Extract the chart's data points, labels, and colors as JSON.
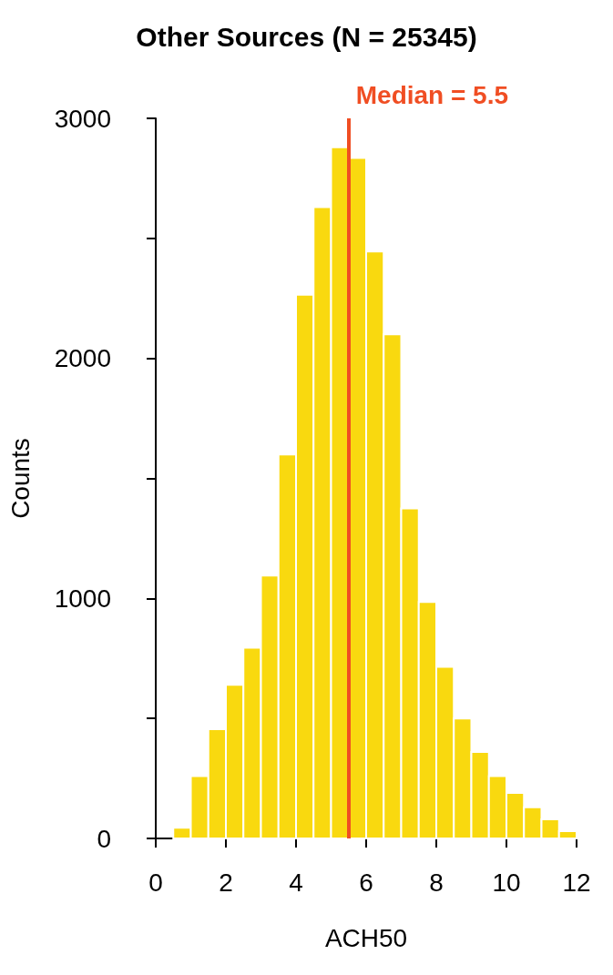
{
  "chart_data": {
    "type": "histogram",
    "title": "Other Sources (N = 25345)",
    "xlabel": "ACH50",
    "ylabel": "Counts",
    "bins": [
      0.5,
      1.0,
      1.5,
      2.0,
      2.5,
      3.0,
      3.5,
      4.0,
      4.5,
      5.0,
      5.5,
      6.0,
      6.5,
      7.0,
      7.5,
      8.0,
      8.5,
      9.0,
      9.5,
      10.0,
      10.5,
      11.0,
      11.5,
      12.0
    ],
    "values": [
      45,
      260,
      455,
      640,
      795,
      1095,
      1600,
      2265,
      2630,
      2880,
      2835,
      2445,
      2100,
      1375,
      985,
      715,
      500,
      360,
      260,
      190,
      130,
      80,
      30
    ],
    "color": "#f9d90f",
    "xlim": [
      0,
      12
    ],
    "xticks": [
      0,
      2,
      4,
      6,
      8,
      10,
      12
    ],
    "ylim": [
      0,
      3000
    ],
    "yticks": [
      0,
      {
        "value": 500,
        "label": null
      },
      1000,
      {
        "value": 1500,
        "label": null
      },
      2000,
      {
        "value": 2500,
        "label": null
      },
      3000
    ],
    "ref_lines": [
      {
        "axis": "x",
        "value": 5.5,
        "label": "Median = 5.5",
        "color": "#f04e23"
      }
    ],
    "grid": false
  }
}
